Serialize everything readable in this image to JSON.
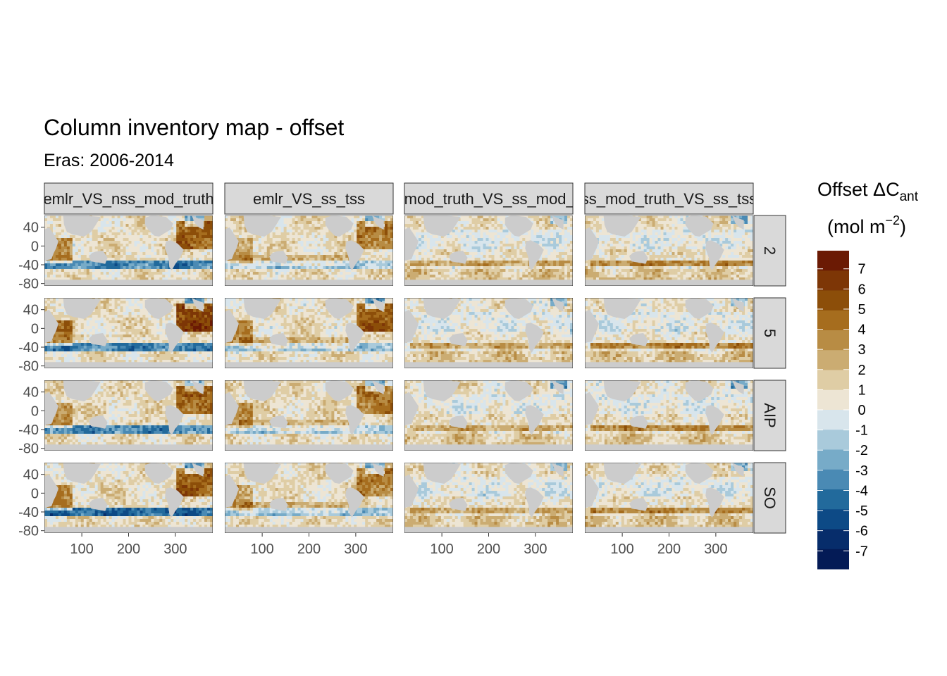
{
  "chart_data": {
    "type": "heatmap",
    "title": "Column inventory map - offset",
    "subtitle": "Eras: 2006-2014",
    "column_facets": [
      "emlr_VS_nss_mod_truth",
      "emlr_VS_ss_tss",
      "nss_mod_truth_VS_ss_mod_truth",
      "ss_mod_truth_VS_ss_tss"
    ],
    "row_facets": [
      "2",
      "5",
      "AIP",
      "SO"
    ],
    "x_ticks": [
      100,
      200,
      300
    ],
    "y_ticks": [
      40,
      0,
      -40,
      -80
    ],
    "xlim": [
      20,
      380
    ],
    "ylim": [
      -85,
      65
    ],
    "xlabel": "",
    "ylabel": "",
    "grid": false,
    "legend": {
      "title_main": "Offset ΔC",
      "title_sub": "ant",
      "title_unit_prefix": "(mol m",
      "title_unit_sup": "−2",
      "title_unit_suffix": ")",
      "placement": "right",
      "labels": [
        "7",
        "6",
        "5",
        "4",
        "3",
        "2",
        "1",
        "0",
        "-1",
        "-2",
        "-3",
        "-4",
        "-5",
        "-6",
        "-7"
      ],
      "colors": [
        "#6b1a04",
        "#7d3606",
        "#8c4e09",
        "#a66d1e",
        "#b88c44",
        "#cbac72",
        "#dfcda5",
        "#ede5d4",
        "#d8e5ec",
        "#a9cadb",
        "#77abc8",
        "#4a8ab4",
        "#226a9c",
        "#0d4a86",
        "#072d6b",
        "#041b56"
      ]
    },
    "land_color": "#cccccc"
  }
}
